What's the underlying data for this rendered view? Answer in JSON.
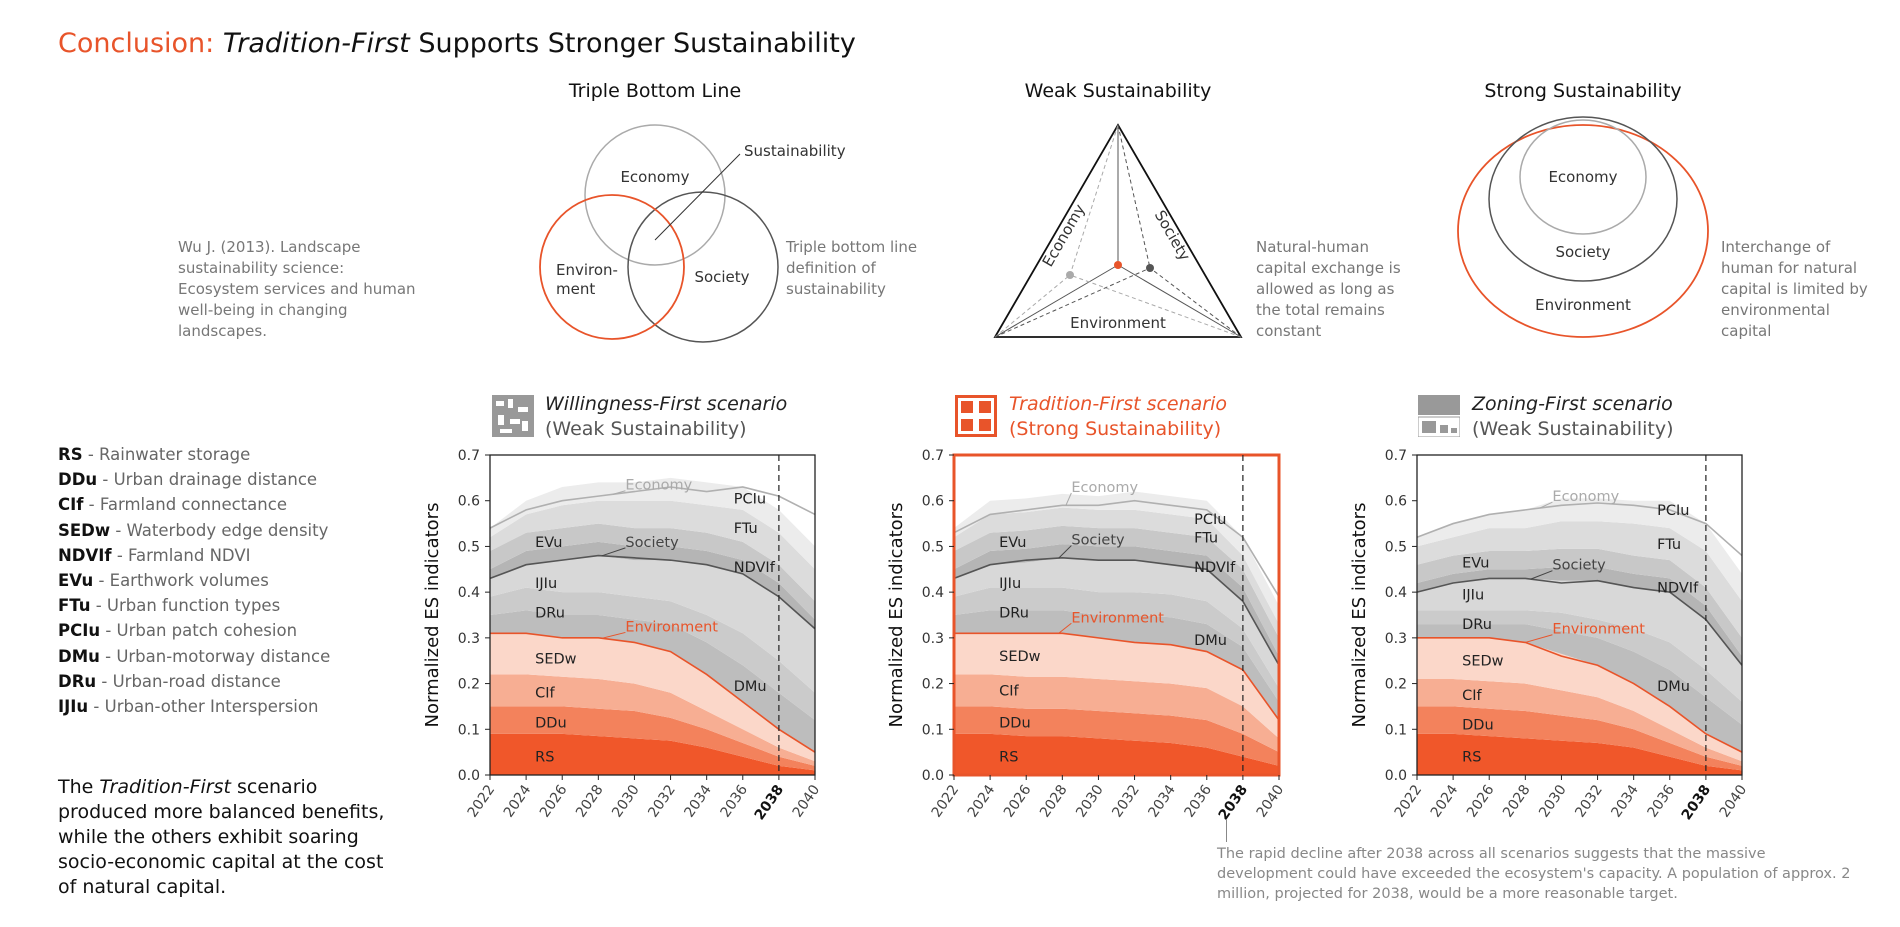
{
  "title": {
    "prefix": "Conclusion: ",
    "italic": "Tradition-First",
    "suffix": " Supports Stronger Sustainability"
  },
  "diagrams": {
    "tbl": {
      "title": "Triple Bottom Line",
      "economy": "Economy",
      "environment_1": "Environ-",
      "environment_2": "ment",
      "society": "Society",
      "sustainability": "Sustainability",
      "caption": "Triple bottom line definition of sustainability"
    },
    "weak": {
      "title": "Weak Sustainability",
      "economy": "Economy",
      "society": "Society",
      "environment": "Environment",
      "caption": "Natural-human capital exchange is allowed as long as the total remains constant"
    },
    "strong": {
      "title": "Strong Sustainability",
      "economy": "Economy",
      "society": "Society",
      "environment": "Environment",
      "caption": "Interchange of human for natural capital is limited by environmental capital"
    }
  },
  "reference": "Wu J. (2013). Landscape sustainability science: Ecosystem services and human well-being in changing landscapes.",
  "legend": [
    {
      "code": "RS",
      "desc": " - Rainwater storage"
    },
    {
      "code": "DDu",
      "desc": " - Urban drainage distance"
    },
    {
      "code": "CIf",
      "desc": " - Farmland connectance"
    },
    {
      "code": "SEDw",
      "desc": " - Waterbody edge density"
    },
    {
      "code": "NDVIf",
      "desc": " - Farmland NDVI"
    },
    {
      "code": "EVu",
      "desc": " - Earthwork volumes"
    },
    {
      "code": "FTu",
      "desc": " - Urban function types"
    },
    {
      "code": "PCIu",
      "desc": " - Urban patch cohesion"
    },
    {
      "code": "DMu",
      "desc": " - Urban-motorway distance"
    },
    {
      "code": "DRu",
      "desc": " - Urban-road distance"
    },
    {
      "code": "IJIu",
      "desc": " - Urban-other Interspersion"
    }
  ],
  "conclusion": {
    "pre": "The ",
    "italic": "Tradition-First",
    "post": " scenario produced more balanced benefits, while the others exhibit soaring socio-economic capital at the cost of natural capital."
  },
  "footnote": "The rapid decline after 2038 across all scenarios suggests that the massive development could have exceeded the ecosystem's capacity. A population of approx. 2 million, projected for 2038, would be a more reasonable target.",
  "colors": {
    "accent": "#e8542a",
    "grid_gray": "#999999"
  },
  "chart_data": [
    {
      "type": "area",
      "title": "Willingness-First scenario",
      "subtitle": "(Weak Sustainability)",
      "ylabel": "Normalized ES indicators",
      "xlabel": "",
      "x": [
        2022,
        2024,
        2026,
        2028,
        2030,
        2032,
        2034,
        2036,
        2038,
        2040
      ],
      "xticks": [
        "2022",
        "2024",
        "2026",
        "2028",
        "2030",
        "2032",
        "2034",
        "2036",
        "2038",
        "2040"
      ],
      "ylim": [
        0,
        0.7
      ],
      "yticks": [
        "0.0",
        "0.1",
        "0.2",
        "0.3",
        "0.4",
        "0.5",
        "0.6",
        "0.7"
      ],
      "highlight_year": 2038,
      "group_lines": {
        "economy": [
          0.54,
          0.58,
          0.6,
          0.61,
          0.62,
          0.63,
          0.62,
          0.63,
          0.61,
          0.57
        ],
        "society": [
          0.43,
          0.46,
          0.47,
          0.48,
          0.475,
          0.47,
          0.46,
          0.44,
          0.39,
          0.32
        ],
        "environment": [
          0.31,
          0.31,
          0.3,
          0.3,
          0.29,
          0.27,
          0.22,
          0.16,
          0.1,
          0.05
        ]
      },
      "series": [
        {
          "name": "RS",
          "values": [
            0.09,
            0.09,
            0.09,
            0.085,
            0.08,
            0.075,
            0.06,
            0.04,
            0.02,
            0.01
          ]
        },
        {
          "name": "DDu",
          "values": [
            0.06,
            0.06,
            0.06,
            0.06,
            0.06,
            0.05,
            0.04,
            0.03,
            0.02,
            0.01
          ]
        },
        {
          "name": "CIf",
          "values": [
            0.07,
            0.07,
            0.065,
            0.065,
            0.06,
            0.055,
            0.04,
            0.03,
            0.02,
            0.01
          ]
        },
        {
          "name": "SEDw",
          "values": [
            0.09,
            0.09,
            0.085,
            0.09,
            0.09,
            0.09,
            0.08,
            0.06,
            0.04,
            0.02
          ]
        },
        {
          "name": "DMu",
          "values": [
            0.04,
            0.05,
            0.05,
            0.05,
            0.05,
            0.06,
            0.07,
            0.08,
            0.08,
            0.07
          ]
        },
        {
          "name": "DRu",
          "values": [
            0.04,
            0.05,
            0.05,
            0.05,
            0.05,
            0.05,
            0.06,
            0.07,
            0.07,
            0.06
          ]
        },
        {
          "name": "IJIu",
          "values": [
            0.04,
            0.05,
            0.07,
            0.08,
            0.08,
            0.09,
            0.11,
            0.13,
            0.14,
            0.14
          ]
        },
        {
          "name": "NDVIf",
          "values": [
            0.02,
            0.03,
            0.03,
            0.03,
            0.03,
            0.03,
            0.03,
            0.03,
            0.03,
            0.02
          ]
        },
        {
          "name": "EVu",
          "values": [
            0.04,
            0.04,
            0.04,
            0.04,
            0.04,
            0.04,
            0.04,
            0.04,
            0.04,
            0.04
          ]
        },
        {
          "name": "FTu",
          "values": [
            0.03,
            0.04,
            0.05,
            0.05,
            0.06,
            0.06,
            0.06,
            0.07,
            0.07,
            0.07
          ]
        },
        {
          "name": "PCIu",
          "values": [
            0.02,
            0.03,
            0.04,
            0.04,
            0.04,
            0.05,
            0.05,
            0.05,
            0.05,
            0.05
          ]
        }
      ],
      "labels": [
        "Economy",
        "Society",
        "Environment",
        "EVu",
        "IJIu",
        "DRu",
        "SEDw",
        "CIf",
        "DDu",
        "RS",
        "PCIu",
        "FTu",
        "NDVIf",
        "DMu"
      ]
    },
    {
      "type": "area",
      "title": "Tradition-First scenario",
      "subtitle": "(Strong Sustainability)",
      "ylabel": "Normalized ES indicators",
      "xlabel": "",
      "x": [
        2022,
        2024,
        2026,
        2028,
        2030,
        2032,
        2034,
        2036,
        2038,
        2040
      ],
      "xticks": [
        "2022",
        "2024",
        "2026",
        "2028",
        "2030",
        "2032",
        "2034",
        "2036",
        "2038",
        "2040"
      ],
      "ylim": [
        0,
        0.7
      ],
      "yticks": [
        "0.0",
        "0.1",
        "0.2",
        "0.3",
        "0.4",
        "0.5",
        "0.6",
        "0.7"
      ],
      "highlight_year": 2038,
      "group_lines": {
        "economy": [
          0.53,
          0.57,
          0.58,
          0.59,
          0.59,
          0.6,
          0.59,
          0.58,
          0.52,
          0.39
        ],
        "society": [
          0.43,
          0.46,
          0.47,
          0.475,
          0.47,
          0.47,
          0.46,
          0.45,
          0.38,
          0.24
        ],
        "environment": [
          0.31,
          0.31,
          0.31,
          0.31,
          0.3,
          0.29,
          0.285,
          0.27,
          0.23,
          0.12
        ]
      },
      "series": [
        {
          "name": "RS",
          "values": [
            0.09,
            0.09,
            0.085,
            0.085,
            0.08,
            0.075,
            0.07,
            0.06,
            0.04,
            0.02
          ]
        },
        {
          "name": "DDu",
          "values": [
            0.06,
            0.06,
            0.06,
            0.06,
            0.06,
            0.06,
            0.06,
            0.06,
            0.05,
            0.03
          ]
        },
        {
          "name": "CIf",
          "values": [
            0.07,
            0.07,
            0.07,
            0.07,
            0.07,
            0.07,
            0.07,
            0.07,
            0.06,
            0.03
          ]
        },
        {
          "name": "SEDw",
          "values": [
            0.09,
            0.09,
            0.095,
            0.095,
            0.09,
            0.085,
            0.085,
            0.08,
            0.08,
            0.04
          ]
        },
        {
          "name": "DMu",
          "values": [
            0.04,
            0.05,
            0.05,
            0.05,
            0.05,
            0.06,
            0.06,
            0.06,
            0.05,
            0.04
          ]
        },
        {
          "name": "DRu",
          "values": [
            0.04,
            0.05,
            0.05,
            0.05,
            0.05,
            0.05,
            0.05,
            0.05,
            0.04,
            0.03
          ]
        },
        {
          "name": "IJIu",
          "values": [
            0.04,
            0.05,
            0.055,
            0.065,
            0.07,
            0.07,
            0.065,
            0.07,
            0.06,
            0.05
          ]
        },
        {
          "name": "NDVIf",
          "values": [
            0.02,
            0.03,
            0.03,
            0.03,
            0.03,
            0.03,
            0.03,
            0.03,
            0.03,
            0.02
          ]
        },
        {
          "name": "EVu",
          "values": [
            0.04,
            0.04,
            0.04,
            0.04,
            0.04,
            0.04,
            0.04,
            0.04,
            0.04,
            0.04
          ]
        },
        {
          "name": "FTu",
          "values": [
            0.03,
            0.04,
            0.04,
            0.04,
            0.04,
            0.04,
            0.04,
            0.04,
            0.03,
            0.03
          ]
        },
        {
          "name": "PCIu",
          "values": [
            0.02,
            0.03,
            0.03,
            0.03,
            0.03,
            0.04,
            0.04,
            0.04,
            0.04,
            0.04
          ]
        }
      ],
      "labels": [
        "Economy",
        "Society",
        "Environment",
        "EVu",
        "IJIu",
        "DRu",
        "SEDw",
        "CIf",
        "DDu",
        "RS",
        "PCIu",
        "FTu",
        "NDVIf",
        "DMu"
      ]
    },
    {
      "type": "area",
      "title": "Zoning-First scenario",
      "subtitle": "(Weak Sustainability)",
      "ylabel": "Normalized ES indicators",
      "xlabel": "",
      "x": [
        2022,
        2024,
        2026,
        2028,
        2030,
        2032,
        2034,
        2036,
        2038,
        2040
      ],
      "xticks": [
        "2022",
        "2024",
        "2026",
        "2028",
        "2030",
        "2032",
        "2034",
        "2036",
        "2038",
        "2040"
      ],
      "ylim": [
        0,
        0.7
      ],
      "yticks": [
        "0.0",
        "0.1",
        "0.2",
        "0.3",
        "0.4",
        "0.5",
        "0.6",
        "0.7"
      ],
      "highlight_year": 2038,
      "group_lines": {
        "economy": [
          0.52,
          0.55,
          0.57,
          0.58,
          0.59,
          0.595,
          0.59,
          0.58,
          0.55,
          0.48
        ],
        "society": [
          0.4,
          0.42,
          0.43,
          0.43,
          0.42,
          0.425,
          0.41,
          0.4,
          0.34,
          0.24
        ],
        "environment": [
          0.3,
          0.3,
          0.3,
          0.29,
          0.26,
          0.24,
          0.2,
          0.15,
          0.09,
          0.05
        ]
      },
      "series": [
        {
          "name": "RS",
          "values": [
            0.09,
            0.09,
            0.085,
            0.08,
            0.075,
            0.07,
            0.06,
            0.04,
            0.02,
            0.01
          ]
        },
        {
          "name": "DDu",
          "values": [
            0.06,
            0.06,
            0.06,
            0.06,
            0.055,
            0.05,
            0.04,
            0.03,
            0.02,
            0.01
          ]
        },
        {
          "name": "CIf",
          "values": [
            0.06,
            0.06,
            0.06,
            0.06,
            0.055,
            0.05,
            0.04,
            0.03,
            0.02,
            0.01
          ]
        },
        {
          "name": "SEDw",
          "values": [
            0.09,
            0.09,
            0.095,
            0.09,
            0.08,
            0.07,
            0.06,
            0.05,
            0.03,
            0.02
          ]
        },
        {
          "name": "DMu",
          "values": [
            0.03,
            0.03,
            0.03,
            0.04,
            0.05,
            0.06,
            0.07,
            0.08,
            0.08,
            0.06
          ]
        },
        {
          "name": "DRu",
          "values": [
            0.03,
            0.03,
            0.03,
            0.03,
            0.04,
            0.04,
            0.05,
            0.06,
            0.06,
            0.05
          ]
        },
        {
          "name": "IJIu",
          "values": [
            0.04,
            0.06,
            0.07,
            0.07,
            0.07,
            0.085,
            0.09,
            0.11,
            0.11,
            0.08
          ]
        },
        {
          "name": "NDVIf",
          "values": [
            0.02,
            0.02,
            0.02,
            0.02,
            0.03,
            0.03,
            0.03,
            0.03,
            0.03,
            0.02
          ]
        },
        {
          "name": "EVu",
          "values": [
            0.04,
            0.04,
            0.04,
            0.04,
            0.04,
            0.04,
            0.04,
            0.04,
            0.04,
            0.04
          ]
        },
        {
          "name": "FTu",
          "values": [
            0.04,
            0.04,
            0.05,
            0.05,
            0.06,
            0.06,
            0.07,
            0.07,
            0.08,
            0.08
          ]
        },
        {
          "name": "PCIu",
          "values": [
            0.02,
            0.03,
            0.03,
            0.04,
            0.05,
            0.05,
            0.05,
            0.06,
            0.06,
            0.06
          ]
        }
      ],
      "labels": [
        "Economy",
        "Society",
        "Environment",
        "EVu",
        "IJIu",
        "DRu",
        "SEDw",
        "CIf",
        "DDu",
        "RS",
        "PCIu",
        "FTu",
        "NDVIf",
        "DMu"
      ]
    }
  ]
}
